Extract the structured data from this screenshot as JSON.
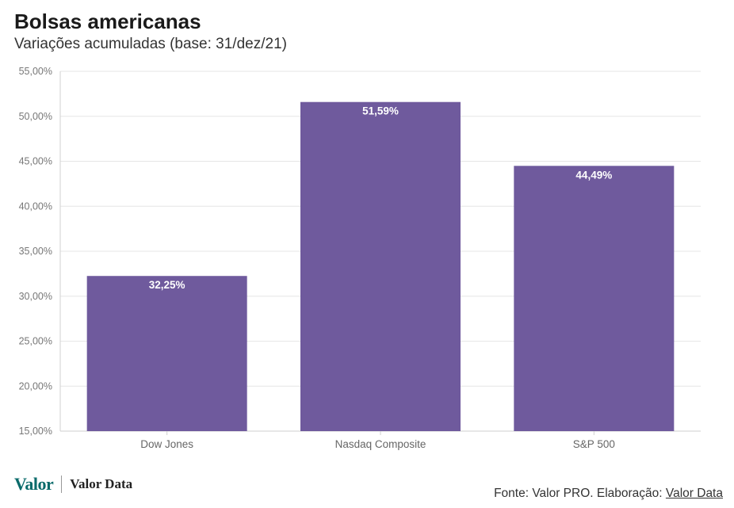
{
  "header": {
    "title": "Bolsas americanas",
    "subtitle": "Variações acumuladas (base: 31/dez/21)"
  },
  "chart_data": {
    "type": "bar",
    "categories": [
      "Dow Jones",
      "Nasdaq Composite",
      "S&P 500"
    ],
    "values": [
      32.25,
      51.59,
      44.49
    ],
    "data_labels": [
      "32,25%",
      "51,59%",
      "44,49%"
    ],
    "ylim": [
      15,
      55
    ],
    "yticks": [
      15,
      20,
      25,
      30,
      35,
      40,
      45,
      50,
      55
    ],
    "ytick_labels": [
      "15,00%",
      "20,00%",
      "25,00%",
      "30,00%",
      "35,00%",
      "40,00%",
      "45,00%",
      "50,00%",
      "55,00%"
    ],
    "bar_color": "#6f5a9d",
    "grid": true
  },
  "footer": {
    "logo_valor": "Valor",
    "logo_data": "Valor Data",
    "source_prefix": "Fonte: Valor PRO. Elaboração: ",
    "source_link": "Valor Data"
  }
}
